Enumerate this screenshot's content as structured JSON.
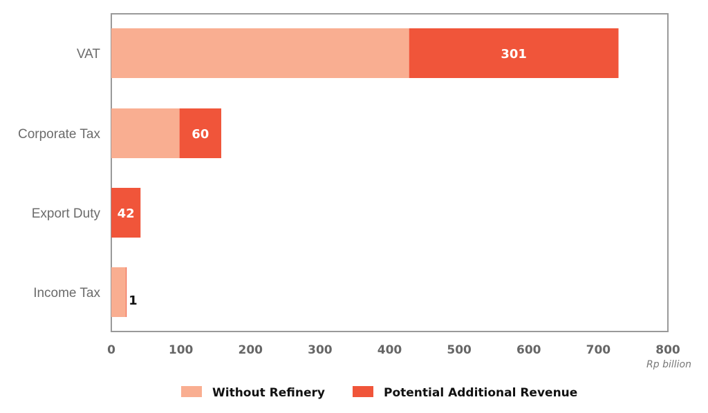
{
  "chart_data": {
    "type": "bar",
    "orientation": "horizontal",
    "stacked": true,
    "categories": [
      "VAT",
      "Corporate Tax",
      "Export Duty",
      "Income Tax"
    ],
    "series": [
      {
        "name": "Without Refinery",
        "color": "#F9AE91",
        "values": [
          428,
          98,
          0,
          21
        ]
      },
      {
        "name": "Potential Additional Revenue",
        "color": "#F0553A",
        "values": [
          301,
          60,
          42,
          1
        ]
      }
    ],
    "data_labels": [
      "301",
      "60",
      "42",
      "1"
    ],
    "xlim": [
      0,
      800
    ],
    "xticks": [
      "0",
      "100",
      "200",
      "300",
      "400",
      "500",
      "600",
      "700",
      "800"
    ],
    "xlabel": "Rp billion",
    "legend": "bottom"
  }
}
